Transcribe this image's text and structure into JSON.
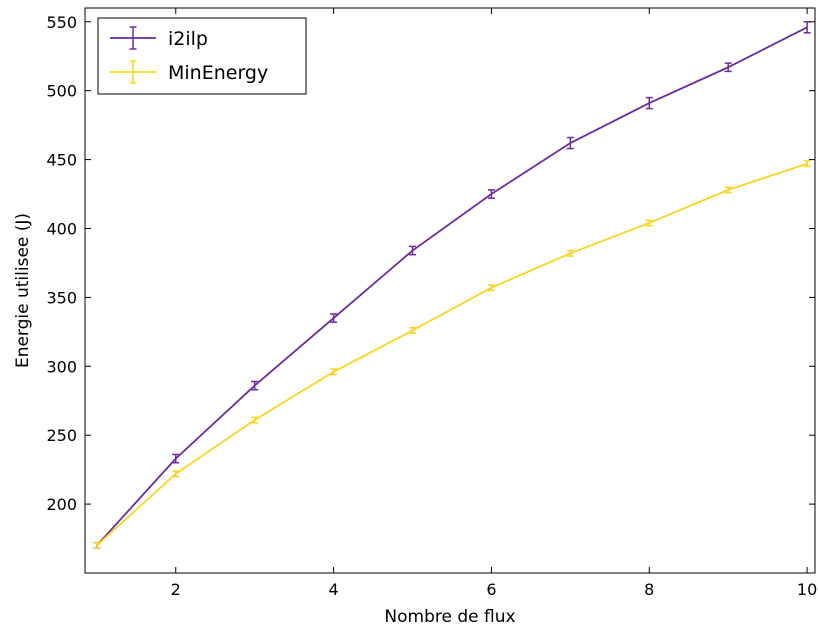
{
  "chart_data": {
    "type": "line",
    "title": "",
    "xlabel": "Nombre de flux",
    "ylabel": "Energie utilisee (J)",
    "xlim": [
      0.85,
      10.1
    ],
    "ylim": [
      150,
      560
    ],
    "x_ticks": [
      2,
      4,
      6,
      8,
      10
    ],
    "y_ticks": [
      200,
      250,
      300,
      350,
      400,
      450,
      500,
      550
    ],
    "grid": false,
    "legend_position": "top-left",
    "x": [
      1,
      2,
      3,
      4,
      5,
      6,
      7,
      8,
      9,
      10
    ],
    "series": [
      {
        "name": "i2ilp",
        "color": "#6a2c9e",
        "values": [
          170,
          233,
          286,
          335,
          384,
          425,
          462,
          491,
          517,
          546
        ],
        "errors": [
          2,
          3,
          3,
          3,
          3,
          3,
          4,
          4,
          3,
          4
        ]
      },
      {
        "name": "MinEnergy",
        "color": "#f5d623",
        "values": [
          170,
          222,
          261,
          296,
          326,
          357,
          382,
          404,
          428,
          447
        ],
        "errors": [
          2,
          2,
          2,
          2,
          2,
          2,
          2,
          2,
          2,
          2
        ]
      }
    ]
  }
}
